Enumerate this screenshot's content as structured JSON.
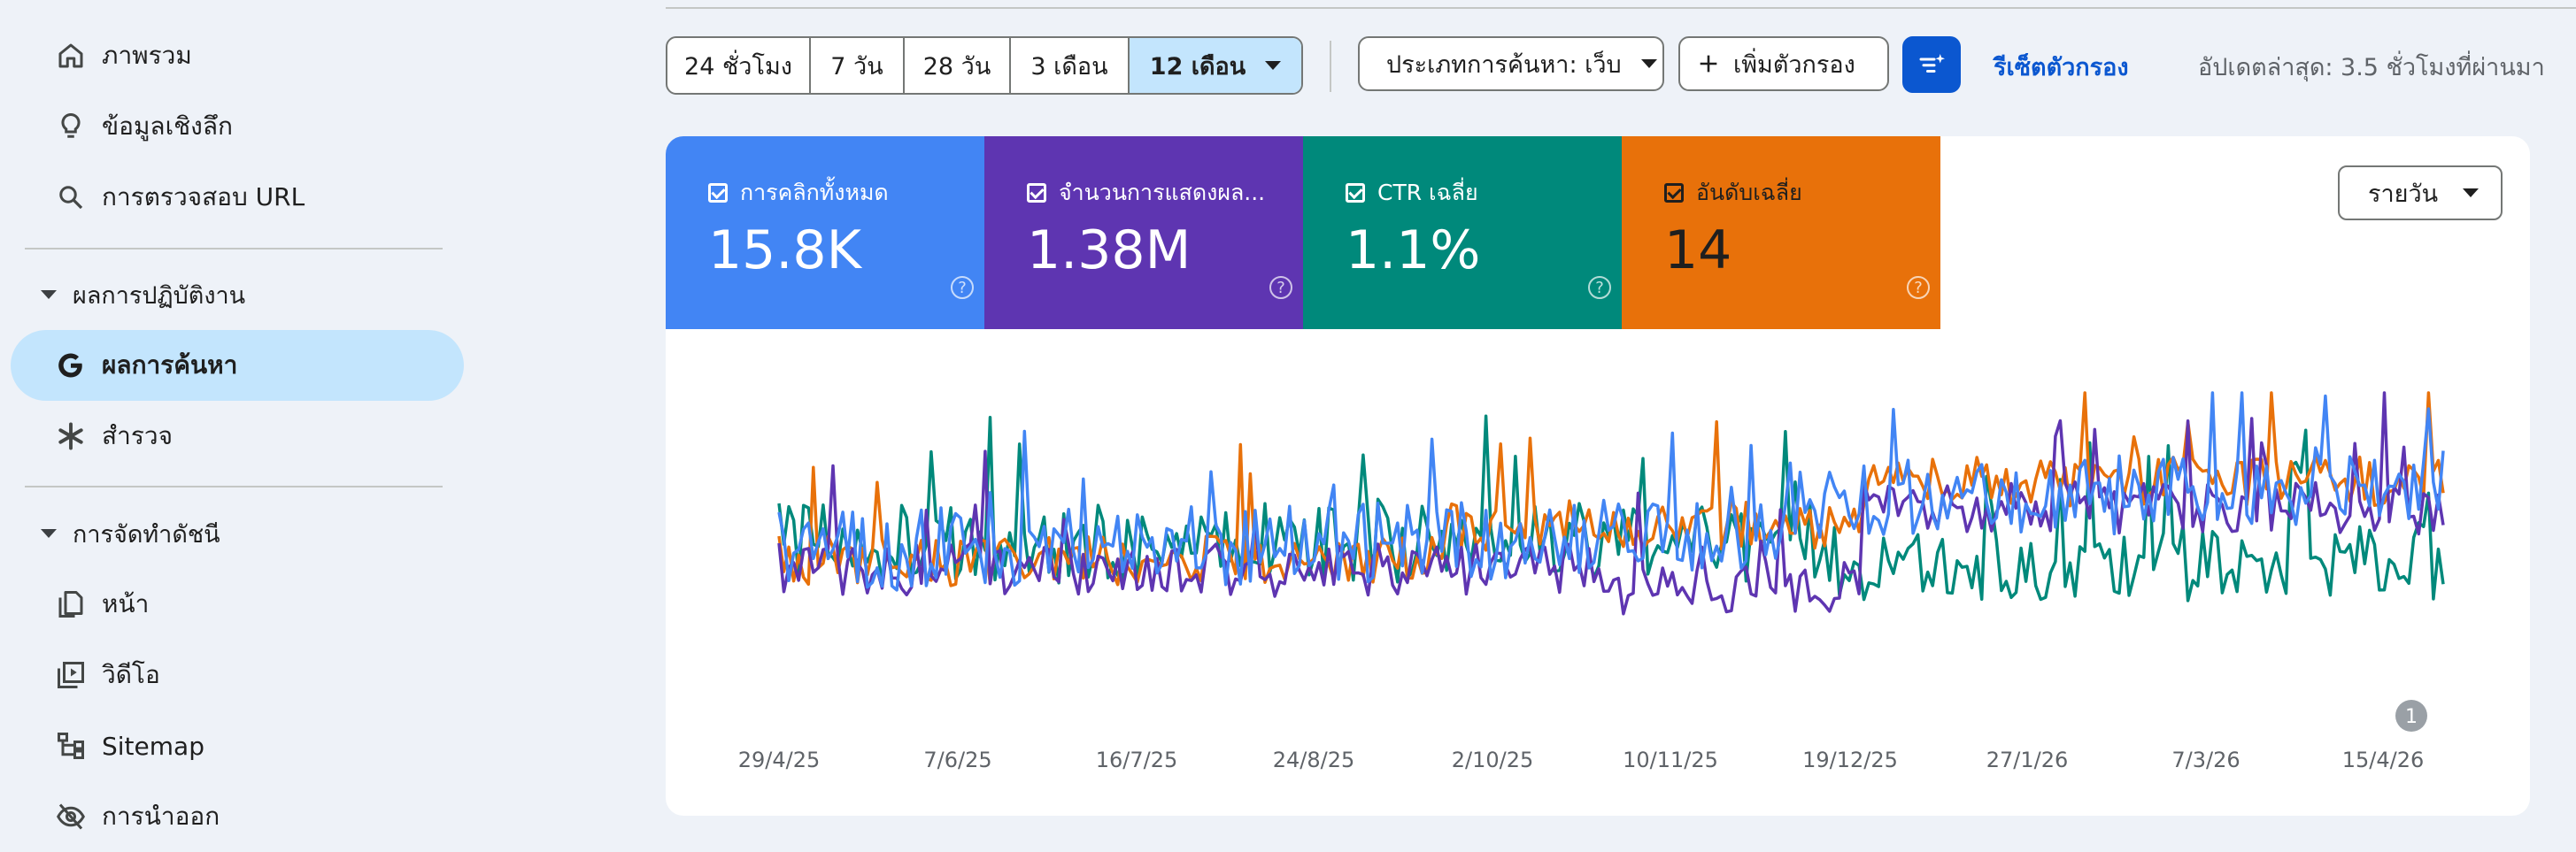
{
  "sidebar": {
    "items_top": [
      {
        "label": "ภาพรวม",
        "icon": "home-icon"
      },
      {
        "label": "ข้อมูลเชิงลึก",
        "icon": "lightbulb-icon"
      },
      {
        "label": "การตรวจสอบ URL",
        "icon": "search-icon"
      }
    ],
    "section_performance": {
      "title": "ผลการปฏิบัติงาน",
      "items": [
        {
          "label": "ผลการค้นหา",
          "icon": "google-g-icon",
          "active": true
        },
        {
          "label": "สำรวจ",
          "icon": "discover-asterisk-icon",
          "active": false
        }
      ]
    },
    "section_indexing": {
      "title": "การจัดทำดัชนี",
      "items": [
        {
          "label": "หน้า",
          "icon": "pages-icon"
        },
        {
          "label": "วิดีโอ",
          "icon": "video-icon"
        },
        {
          "label": "Sitemap",
          "icon": "sitemap-icon"
        },
        {
          "label": "การนำออก",
          "icon": "removal-eye-off-icon"
        }
      ]
    }
  },
  "toolbar": {
    "ranges": [
      "24 ชั่วโมง",
      "7 วัน",
      "28 วัน",
      "3 เดือน",
      "12 เดือน"
    ],
    "active_range": "12 เดือน",
    "search_type": "ประเภทการค้นหา: เว็บ",
    "add_filter": "เพิ่มตัวกรอง",
    "reset_filters": "รีเซ็ตตัวกรอง",
    "last_updated": "อัปเดตล่าสุด: 3.5 ชั่วโมงที่ผ่านมา"
  },
  "metrics": [
    {
      "label": "การคลิกทั้งหมด",
      "value": "15.8K",
      "color": "#4285f4"
    },
    {
      "label": "จำนวนการแสดงผล...",
      "value": "1.38M",
      "color": "#5e35b1"
    },
    {
      "label": "CTR เฉลี่ย",
      "value": "1.1%",
      "color": "#00897b"
    },
    {
      "label": "อันดับเฉลี่ย",
      "value": "14",
      "color": "#e8710a"
    }
  ],
  "period_select": "รายวัน",
  "annotation_badge": "1",
  "chart_data": {
    "type": "line",
    "x_ticks": [
      "29/4/25",
      "7/6/25",
      "16/7/25",
      "24/8/25",
      "2/10/25",
      "10/11/25",
      "19/12/25",
      "27/1/26",
      "7/3/26",
      "15/4/26"
    ],
    "series": [
      {
        "name": "การคลิกทั้งหมด",
        "color": "#4285f4"
      },
      {
        "name": "จำนวนการแสดงผล",
        "color": "#5e35b1"
      },
      {
        "name": "CTR เฉลี่ย",
        "color": "#00897b"
      },
      {
        "name": "อันดับเฉลี่ย",
        "color": "#e8710a"
      }
    ],
    "y_axis_visible": false,
    "grid": false
  }
}
